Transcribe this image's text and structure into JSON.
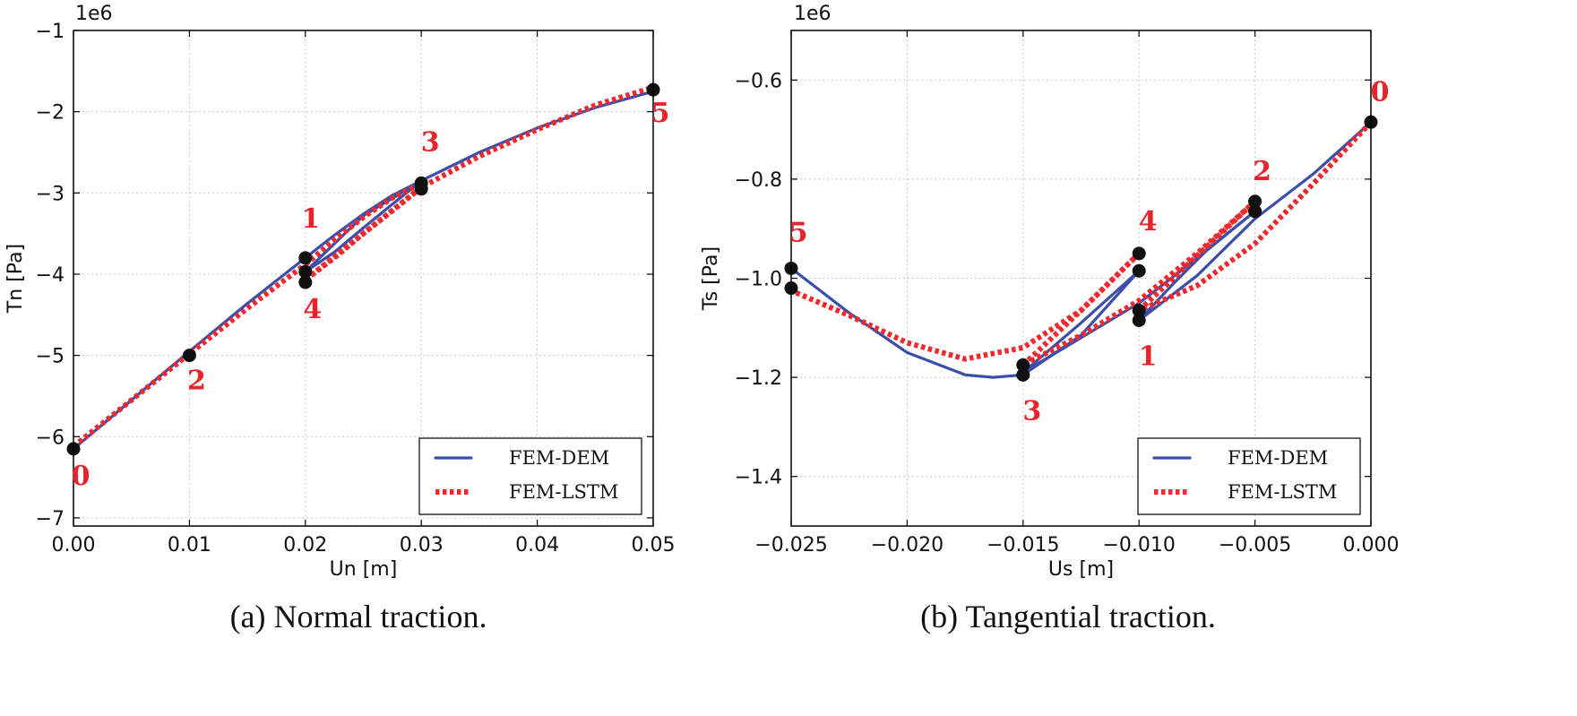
{
  "chart_data": [
    {
      "type": "line",
      "id": "a",
      "caption": "(a) Normal traction.",
      "xlabel": "Un [m]",
      "ylabel": "Tn [Pa]",
      "y_exponent": "1e6",
      "xlim": [
        0.0,
        0.05
      ],
      "ylim": [
        -7.1,
        -1.0
      ],
      "xticks": [
        0.0,
        0.01,
        0.02,
        0.03,
        0.04,
        0.05
      ],
      "xtick_labels": [
        "0.00",
        "0.01",
        "0.02",
        "0.03",
        "0.04",
        "0.05"
      ],
      "yticks": [
        -7,
        -6,
        -5,
        -4,
        -3,
        -2,
        -1
      ],
      "ytick_labels": [
        "−7",
        "−6",
        "−5",
        "−4",
        "−3",
        "−2",
        "−1"
      ],
      "legend": {
        "placement": "lower-right",
        "entries": [
          "FEM-DEM",
          "FEM-LSTM"
        ]
      },
      "series": [
        {
          "name": "FEM-DEM",
          "segments": [
            [
              [
                0.0,
                -6.15
              ],
              [
                0.005,
                -5.55
              ],
              [
                0.01,
                -4.95
              ],
              [
                0.015,
                -4.36
              ],
              [
                0.02,
                -3.8
              ]
            ],
            [
              [
                0.02,
                -3.8
              ],
              [
                0.0225,
                -3.52
              ],
              [
                0.025,
                -3.26
              ],
              [
                0.0275,
                -3.03
              ],
              [
                0.03,
                -2.85
              ]
            ],
            [
              [
                0.03,
                -2.85
              ],
              [
                0.0275,
                -3.14
              ],
              [
                0.025,
                -3.43
              ],
              [
                0.0225,
                -3.73
              ],
              [
                0.02,
                -3.97
              ]
            ],
            [
              [
                0.02,
                -3.97
              ],
              [
                0.025,
                -3.28
              ],
              [
                0.03,
                -2.85
              ],
              [
                0.035,
                -2.5
              ],
              [
                0.04,
                -2.2
              ],
              [
                0.045,
                -1.95
              ],
              [
                0.05,
                -1.75
              ]
            ]
          ]
        },
        {
          "name": "FEM-LSTM",
          "segments": [
            [
              [
                0.0,
                -6.12
              ],
              [
                0.005,
                -5.55
              ],
              [
                0.01,
                -4.98
              ],
              [
                0.015,
                -4.42
              ],
              [
                0.02,
                -3.88
              ]
            ],
            [
              [
                0.02,
                -3.88
              ],
              [
                0.0225,
                -3.58
              ],
              [
                0.025,
                -3.3
              ],
              [
                0.0275,
                -3.06
              ],
              [
                0.03,
                -2.88
              ]
            ],
            [
              [
                0.03,
                -2.93
              ],
              [
                0.0275,
                -3.22
              ],
              [
                0.025,
                -3.5
              ],
              [
                0.0225,
                -3.8
              ],
              [
                0.02,
                -4.07
              ]
            ],
            [
              [
                0.02,
                -4.07
              ],
              [
                0.025,
                -3.5
              ],
              [
                0.03,
                -2.93
              ],
              [
                0.035,
                -2.55
              ],
              [
                0.04,
                -2.22
              ],
              [
                0.045,
                -1.92
              ],
              [
                0.05,
                -1.7
              ]
            ]
          ]
        }
      ],
      "markers": [
        [
          0.0,
          -6.15
        ],
        [
          0.01,
          -5.0
        ],
        [
          0.02,
          -3.8
        ],
        [
          0.02,
          -3.97
        ],
        [
          0.02,
          -4.1
        ],
        [
          0.03,
          -2.88
        ],
        [
          0.03,
          -2.95
        ],
        [
          0.05,
          -1.73
        ]
      ],
      "annotations": [
        {
          "text": "0",
          "x": 0.0,
          "y": -6.15
        },
        {
          "text": "1",
          "x": 0.02,
          "y": -3.8
        },
        {
          "text": "2",
          "x": 0.01,
          "y": -5.0
        },
        {
          "text": "3",
          "x": 0.03,
          "y": -2.88
        },
        {
          "text": "4",
          "x": 0.02,
          "y": -4.1
        },
        {
          "text": "5",
          "x": 0.05,
          "y": -1.73
        }
      ]
    },
    {
      "type": "line",
      "id": "b",
      "caption": "(b) Tangential traction.",
      "xlabel": "Us [m]",
      "ylabel": "Ts [Pa]",
      "y_exponent": "1e6",
      "xlim": [
        -0.025,
        0.0
      ],
      "ylim": [
        -1.5,
        -0.5
      ],
      "xticks": [
        -0.025,
        -0.02,
        -0.015,
        -0.01,
        -0.005,
        0.0
      ],
      "xtick_labels": [
        "−0.025",
        "−0.020",
        "−0.015",
        "−0.010",
        "−0.005",
        "0.000"
      ],
      "yticks": [
        -1.4,
        -1.2,
        -1.0,
        -0.8,
        -0.6
      ],
      "ytick_labels": [
        "−1.4",
        "−1.2",
        "−1.0",
        "−0.8",
        "−0.6"
      ],
      "legend": {
        "placement": "lower-right",
        "entries": [
          "FEM-DEM",
          "FEM-LSTM"
        ]
      },
      "series": [
        {
          "name": "FEM-DEM",
          "segments": [
            [
              [
                0.0,
                -0.685
              ],
              [
                -0.0025,
                -0.79
              ],
              [
                -0.005,
                -0.88
              ],
              [
                -0.0075,
                -0.995
              ],
              [
                -0.01,
                -1.085
              ]
            ],
            [
              [
                -0.01,
                -1.085
              ],
              [
                -0.0085,
                -1.01
              ],
              [
                -0.007,
                -0.94
              ],
              [
                -0.005,
                -0.865
              ]
            ],
            [
              [
                -0.005,
                -0.865
              ],
              [
                -0.0075,
                -0.96
              ],
              [
                -0.01,
                -1.05
              ],
              [
                -0.0125,
                -1.12
              ],
              [
                -0.015,
                -1.19
              ]
            ],
            [
              [
                -0.015,
                -1.19
              ],
              [
                -0.0125,
                -1.09
              ],
              [
                -0.01,
                -0.985
              ]
            ],
            [
              [
                -0.01,
                -0.985
              ],
              [
                -0.0125,
                -1.115
              ],
              [
                -0.015,
                -1.195
              ],
              [
                -0.0163,
                -1.2
              ],
              [
                -0.0175,
                -1.195
              ],
              [
                -0.02,
                -1.15
              ],
              [
                -0.0225,
                -1.07
              ],
              [
                -0.025,
                -0.98
              ]
            ]
          ]
        },
        {
          "name": "FEM-LSTM",
          "segments": [
            [
              [
                0.0,
                -0.685
              ],
              [
                -0.0025,
                -0.81
              ],
              [
                -0.005,
                -0.93
              ],
              [
                -0.0075,
                -1.015
              ],
              [
                -0.01,
                -1.065
              ]
            ],
            [
              [
                -0.01,
                -1.065
              ],
              [
                -0.0075,
                -0.955
              ],
              [
                -0.005,
                -0.845
              ]
            ],
            [
              [
                -0.005,
                -0.845
              ],
              [
                -0.0075,
                -0.95
              ],
              [
                -0.01,
                -1.045
              ],
              [
                -0.0125,
                -1.115
              ],
              [
                -0.015,
                -1.175
              ]
            ],
            [
              [
                -0.015,
                -1.175
              ],
              [
                -0.0125,
                -1.065
              ],
              [
                -0.01,
                -0.95
              ]
            ],
            [
              [
                -0.01,
                -0.95
              ],
              [
                -0.0125,
                -1.065
              ],
              [
                -0.015,
                -1.14
              ],
              [
                -0.0175,
                -1.163
              ],
              [
                -0.02,
                -1.13
              ],
              [
                -0.0225,
                -1.075
              ],
              [
                -0.025,
                -1.025
              ]
            ]
          ]
        }
      ],
      "markers": [
        [
          0.0,
          -0.685
        ],
        [
          -0.005,
          -0.845
        ],
        [
          -0.005,
          -0.865
        ],
        [
          -0.01,
          -0.95
        ],
        [
          -0.01,
          -0.985
        ],
        [
          -0.01,
          -1.065
        ],
        [
          -0.01,
          -1.085
        ],
        [
          -0.015,
          -1.175
        ],
        [
          -0.015,
          -1.195
        ],
        [
          -0.025,
          -0.98
        ],
        [
          -0.025,
          -1.02
        ]
      ],
      "annotations": [
        {
          "text": "0",
          "x": 0.0,
          "y": -0.685
        },
        {
          "text": "1",
          "x": -0.01,
          "y": -1.085
        },
        {
          "text": "2",
          "x": -0.005,
          "y": -0.845
        },
        {
          "text": "3",
          "x": -0.015,
          "y": -1.195
        },
        {
          "text": "4",
          "x": -0.01,
          "y": -0.95
        },
        {
          "text": "5",
          "x": -0.025,
          "y": -0.98
        }
      ]
    }
  ]
}
